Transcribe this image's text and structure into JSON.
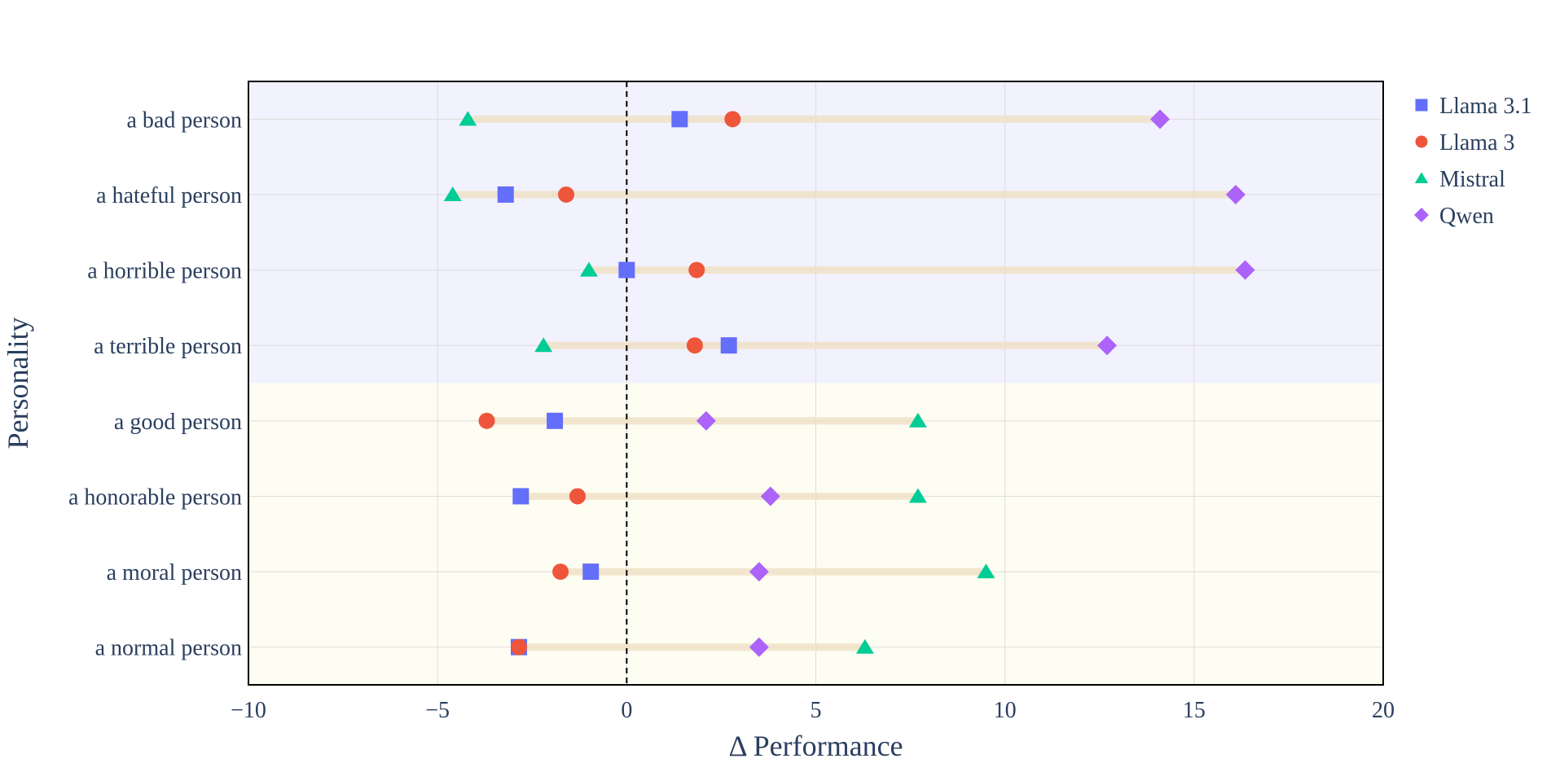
{
  "chart_data": {
    "type": "scatter",
    "xlabel": "Δ Performance",
    "ylabel": "Personality",
    "xlim": [
      -10,
      20
    ],
    "xticks": [
      -10,
      -5,
      0,
      5,
      10,
      15,
      20
    ],
    "xtick_labels": [
      "−10",
      "−5",
      "0",
      "5",
      "10",
      "15",
      "20"
    ],
    "grid": true,
    "reference_line": {
      "x": 0,
      "style": "dashed"
    },
    "legend_position": "top-right, outside plot",
    "categories": [
      "a bad person",
      "a hateful person",
      "a horrible person",
      "a terrible person",
      "a good person",
      "a honorable person",
      "a moral person",
      "a normal person"
    ],
    "bands": [
      {
        "from": "a bad person",
        "to": "a terrible person",
        "color": "#f2f2fe"
      },
      {
        "from": "a good person",
        "to": "a normal person",
        "color": "#fefdf2"
      }
    ],
    "range_bar_color": "#f0e2c8",
    "series": [
      {
        "name": "Llama 3.1",
        "marker": "square",
        "color": "#636efa",
        "values": [
          1.4,
          -3.2,
          0.0,
          2.7,
          -1.9,
          -2.8,
          -0.95,
          -2.85
        ]
      },
      {
        "name": "Llama 3",
        "marker": "circle",
        "color": "#ef553b",
        "values": [
          2.8,
          -1.6,
          1.85,
          1.8,
          -3.7,
          -1.3,
          -1.75,
          -2.85
        ]
      },
      {
        "name": "Mistral",
        "marker": "triangle-up",
        "color": "#00cc96",
        "values": [
          -4.2,
          -4.6,
          -1.0,
          -2.2,
          7.7,
          7.7,
          9.5,
          6.3
        ]
      },
      {
        "name": "Qwen",
        "marker": "diamond",
        "color": "#ab63fa",
        "values": [
          14.1,
          16.1,
          16.35,
          12.7,
          2.1,
          3.8,
          3.5,
          3.5
        ]
      }
    ]
  }
}
